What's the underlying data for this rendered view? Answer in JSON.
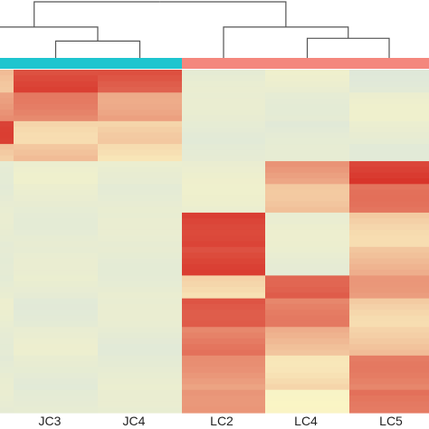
{
  "chart_data": {
    "type": "heatmap",
    "title": "",
    "columns": [
      "",
      "JC3",
      "JC4",
      "LC2",
      "LC4",
      "LC5"
    ],
    "groups": [
      {
        "columns": [
          0,
          1,
          2
        ],
        "color": "#1ec5cf"
      },
      {
        "columns": [
          3,
          4,
          5
        ],
        "color": "#f4877d"
      }
    ],
    "dendrogram": {
      "left": {
        "root": 1.0,
        "inner": 0.55,
        "pair": 0.3
      },
      "right": {
        "root": 1.0,
        "inner": 0.55,
        "pair": 0.35
      }
    },
    "color_scale": {
      "low": "#c6ddec",
      "mid": "#fbf5c4",
      "high": "#d73027",
      "range": [
        -1,
        1
      ]
    },
    "row_count": 60,
    "blocks": [
      {
        "rows": [
          0,
          4
        ],
        "values": [
          0.3,
          0.85,
          0.8,
          -0.35,
          -0.3,
          -0.45
        ]
      },
      {
        "rows": [
          4,
          9
        ],
        "values": [
          0.5,
          0.55,
          0.45,
          -0.4,
          -0.35,
          -0.3
        ]
      },
      {
        "rows": [
          9,
          13
        ],
        "values": [
          0.85,
          0.2,
          0.15,
          -0.4,
          -0.45,
          -0.35
        ]
      },
      {
        "rows": [
          13,
          16
        ],
        "values": [
          0.2,
          0.3,
          0.05,
          -0.35,
          -0.45,
          -0.4
        ]
      },
      {
        "rows": [
          16,
          20
        ],
        "values": [
          -0.35,
          -0.3,
          -0.3,
          -0.3,
          0.45,
          0.95
        ]
      },
      {
        "rows": [
          20,
          25
        ],
        "values": [
          -0.4,
          -0.35,
          -0.35,
          -0.3,
          0.3,
          0.6
        ]
      },
      {
        "rows": [
          25,
          31
        ],
        "values": [
          -0.4,
          -0.35,
          -0.4,
          0.95,
          -0.35,
          0.2
        ]
      },
      {
        "rows": [
          31,
          36
        ],
        "values": [
          -0.35,
          -0.4,
          -0.35,
          0.85,
          -0.35,
          0.3
        ]
      },
      {
        "rows": [
          36,
          40
        ],
        "values": [
          -0.4,
          -0.35,
          -0.35,
          0.1,
          0.8,
          0.4
        ]
      },
      {
        "rows": [
          40,
          45
        ],
        "values": [
          -0.35,
          -0.4,
          -0.4,
          0.85,
          0.55,
          0.2
        ]
      },
      {
        "rows": [
          45,
          50
        ],
        "values": [
          -0.35,
          -0.35,
          -0.4,
          0.6,
          0.3,
          0.25
        ]
      },
      {
        "rows": [
          50,
          56
        ],
        "values": [
          -0.4,
          -0.4,
          -0.35,
          0.45,
          0.15,
          0.55
        ]
      },
      {
        "rows": [
          56,
          60
        ],
        "values": [
          -0.4,
          -0.35,
          -0.4,
          0.55,
          -0.1,
          0.7
        ]
      }
    ]
  }
}
